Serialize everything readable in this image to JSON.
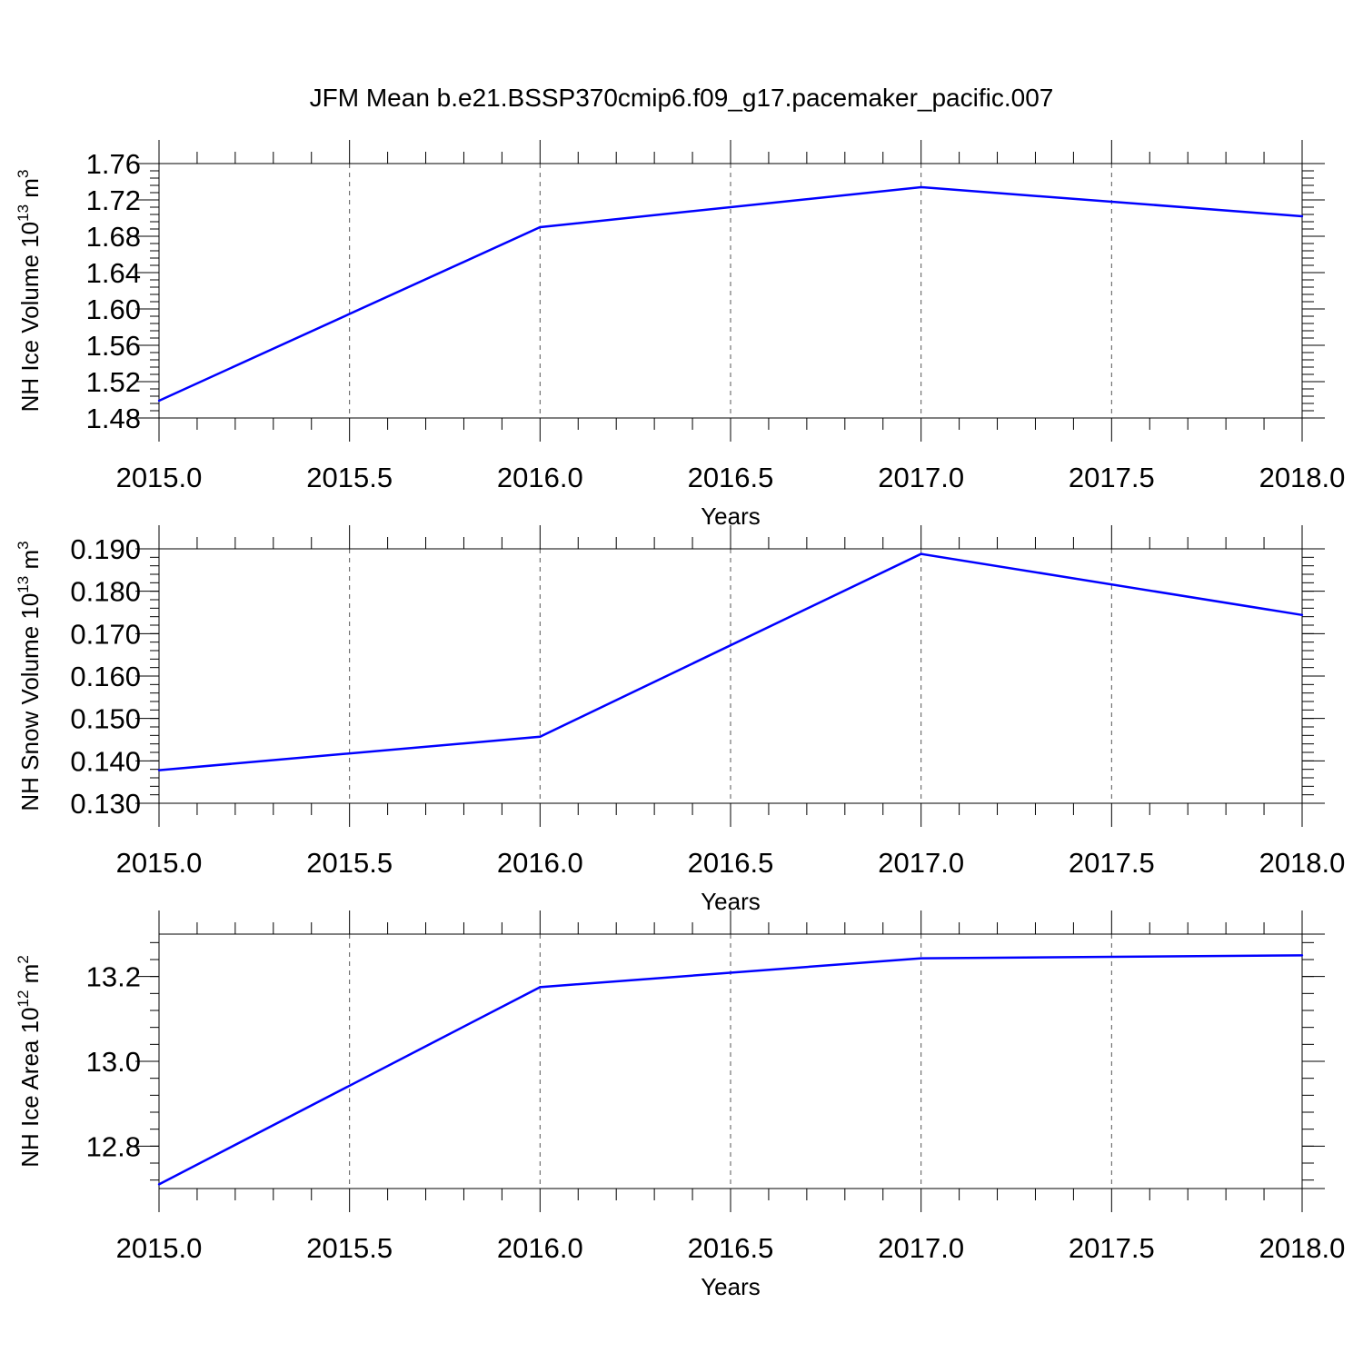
{
  "title": "JFM Mean b.e21.BSSP370cmip6.f09_g17.pacemaker_pacific.007",
  "chart_data": [
    {
      "type": "line",
      "ylabel_main": "NH Ice Volume 10",
      "ylabel_exp": "13",
      "ylabel_unit": " m",
      "ylabel_unit_exp": "3",
      "xlabel": "Years",
      "x": [
        2015.0,
        2016.0,
        2017.0,
        2018.0
      ],
      "values": [
        1.499,
        1.69,
        1.734,
        1.702
      ],
      "xlim": [
        2015.0,
        2018.0
      ],
      "ylim": [
        1.48,
        1.76
      ],
      "xticks": [
        2015.0,
        2015.5,
        2016.0,
        2016.5,
        2017.0,
        2017.5,
        2018.0
      ],
      "xtick_labels": [
        "2015.0",
        "2015.5",
        "2016.0",
        "2016.5",
        "2017.0",
        "2017.5",
        "2018.0"
      ],
      "yticks": [
        1.48,
        1.52,
        1.56,
        1.6,
        1.64,
        1.68,
        1.72,
        1.76
      ],
      "ytick_labels": [
        "1.48",
        "1.52",
        "1.56",
        "1.60",
        "1.64",
        "1.68",
        "1.72",
        "1.76"
      ],
      "grid": "vertical dashed at major x ticks",
      "line_color": "#0000ff"
    },
    {
      "type": "line",
      "ylabel_main": "NH Snow Volume 10",
      "ylabel_exp": "13",
      "ylabel_unit": " m",
      "ylabel_unit_exp": "3",
      "xlabel": "Years",
      "x": [
        2015.0,
        2016.0,
        2017.0,
        2018.0
      ],
      "values": [
        0.1378,
        0.1457,
        0.1888,
        0.1744
      ],
      "xlim": [
        2015.0,
        2018.0
      ],
      "ylim": [
        0.13,
        0.19
      ],
      "xticks": [
        2015.0,
        2015.5,
        2016.0,
        2016.5,
        2017.0,
        2017.5,
        2018.0
      ],
      "xtick_labels": [
        "2015.0",
        "2015.5",
        "2016.0",
        "2016.5",
        "2017.0",
        "2017.5",
        "2018.0"
      ],
      "yticks": [
        0.13,
        0.14,
        0.15,
        0.16,
        0.17,
        0.18,
        0.19
      ],
      "ytick_labels": [
        "0.130",
        "0.140",
        "0.150",
        "0.160",
        "0.170",
        "0.180",
        "0.190"
      ],
      "grid": "vertical dashed at major x ticks",
      "line_color": "#0000ff"
    },
    {
      "type": "line",
      "ylabel_main": "NH Ice Area 10",
      "ylabel_exp": "12",
      "ylabel_unit": " m",
      "ylabel_unit_exp": "2",
      "xlabel": "Years",
      "x": [
        2015.0,
        2016.0,
        2017.0,
        2018.0
      ],
      "values": [
        12.71,
        13.175,
        13.243,
        13.25
      ],
      "xlim": [
        2015.0,
        2018.0
      ],
      "ylim": [
        12.7,
        13.3
      ],
      "xticks": [
        2015.0,
        2015.5,
        2016.0,
        2016.5,
        2017.0,
        2017.5,
        2018.0
      ],
      "xtick_labels": [
        "2015.0",
        "2015.5",
        "2016.0",
        "2016.5",
        "2017.0",
        "2017.5",
        "2018.0"
      ],
      "yticks": [
        12.8,
        13.0,
        13.2
      ],
      "ytick_labels": [
        "12.8",
        "13.0",
        "13.2"
      ],
      "grid": "vertical dashed at major x ticks",
      "line_color": "#0000ff"
    }
  ]
}
